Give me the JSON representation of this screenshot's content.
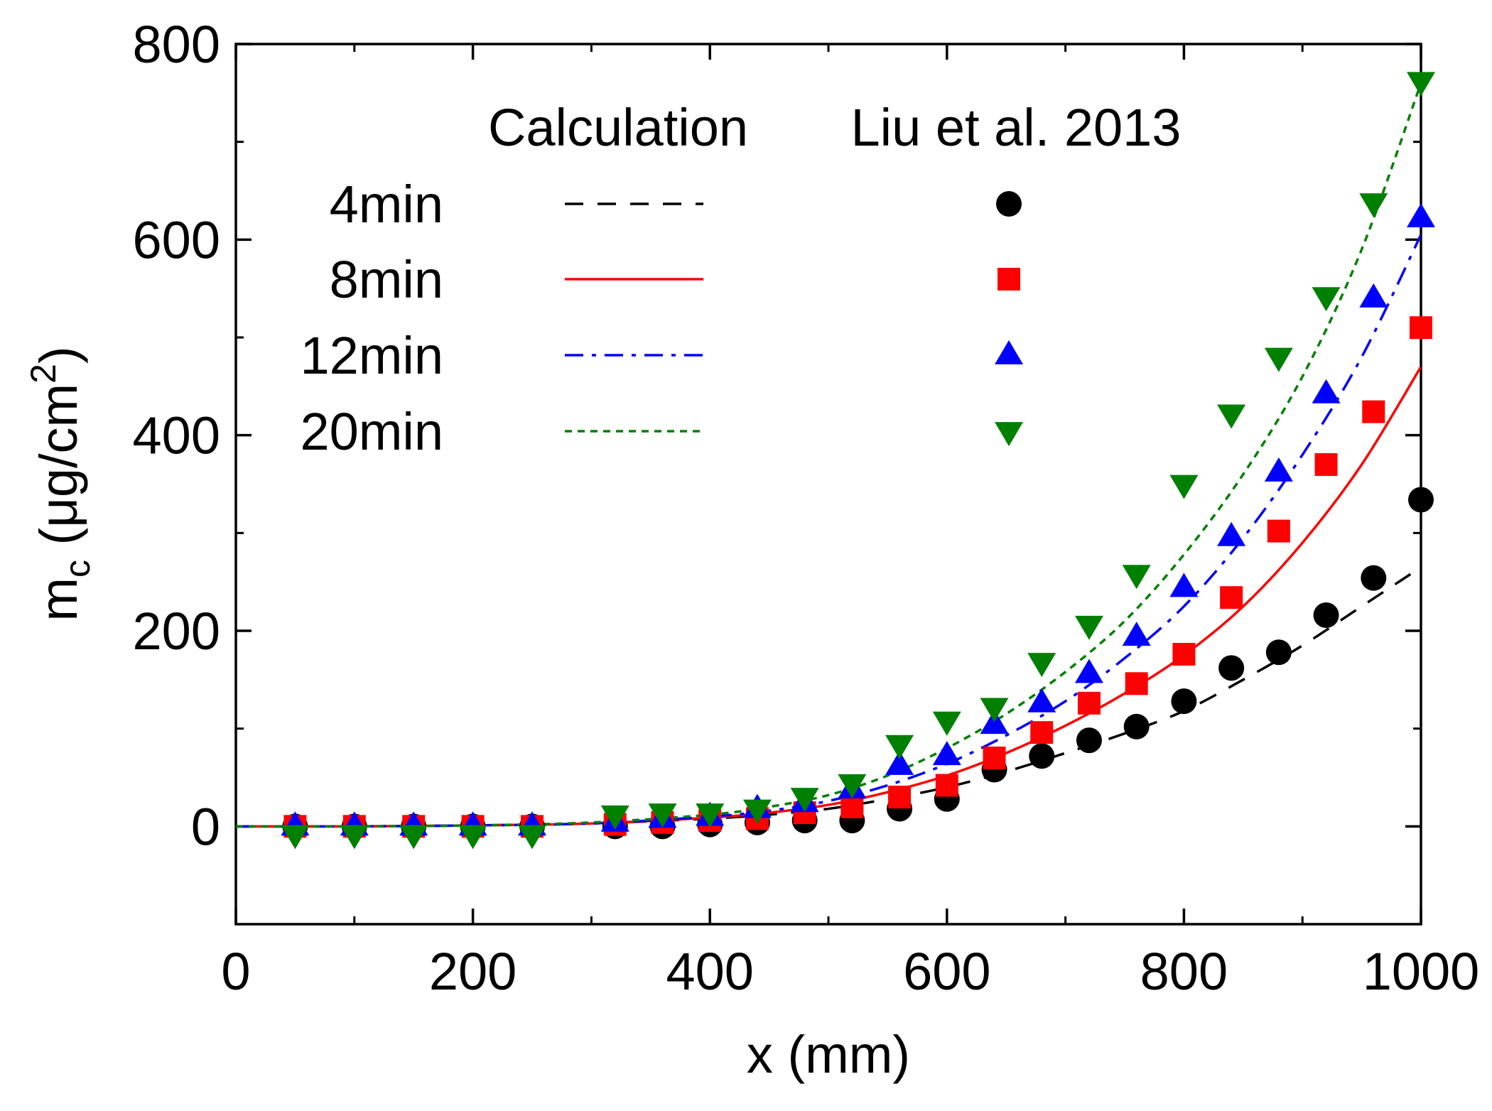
{
  "chart_data": {
    "type": "scatter",
    "title": "",
    "xlabel": "x (mm)",
    "ylabel_main": "m",
    "ylabel_sub": "c",
    "ylabel_rest": " (μg/cm",
    "ylabel_sup": "2",
    "ylabel_end": ")",
    "xlim": [
      0,
      1000
    ],
    "ylim": [
      -100,
      800
    ],
    "xticks": [
      0,
      200,
      400,
      600,
      800,
      1000
    ],
    "yticks": [
      0,
      200,
      400,
      600,
      800
    ],
    "grid": false,
    "legend": {
      "position": "top-left",
      "calc_header": "Calculation",
      "exp_header": "Liu et al. 2013"
    },
    "calculation": [
      {
        "name": "4min",
        "color": "#000000",
        "dash": "dashed",
        "x": [
          0,
          100,
          200,
          300,
          400,
          450,
          500,
          550,
          600,
          650,
          700,
          750,
          800,
          850,
          900,
          950,
          1000
        ],
        "y": [
          0,
          0,
          1,
          3,
          8,
          12,
          18,
          28,
          40,
          56,
          75,
          95,
          118,
          150,
          185,
          225,
          265
        ]
      },
      {
        "name": "8min",
        "color": "#ff0000",
        "dash": "solid",
        "x": [
          0,
          100,
          200,
          300,
          400,
          450,
          500,
          550,
          600,
          650,
          700,
          750,
          800,
          850,
          900,
          950,
          1000
        ],
        "y": [
          0,
          0,
          1,
          3,
          9,
          14,
          22,
          35,
          52,
          75,
          103,
          136,
          175,
          225,
          290,
          370,
          470
        ]
      },
      {
        "name": "12min",
        "color": "#0000ff",
        "dash": "dashdot",
        "x": [
          0,
          100,
          200,
          300,
          400,
          450,
          500,
          550,
          600,
          650,
          700,
          750,
          800,
          850,
          900,
          950,
          1000
        ],
        "y": [
          0,
          0,
          1,
          3,
          10,
          16,
          26,
          42,
          64,
          93,
          128,
          172,
          225,
          295,
          380,
          480,
          605
        ]
      },
      {
        "name": "20min",
        "color": "#008000",
        "dash": "dotted",
        "x": [
          0,
          100,
          200,
          300,
          400,
          450,
          500,
          550,
          600,
          650,
          700,
          750,
          800,
          850,
          900,
          950,
          1000
        ],
        "y": [
          0,
          0,
          1,
          4,
          12,
          20,
          32,
          52,
          80,
          115,
          158,
          210,
          278,
          360,
          460,
          590,
          760
        ]
      }
    ],
    "experiment": [
      {
        "name": "4min",
        "color": "#000000",
        "marker": "circle",
        "x": [
          50,
          100,
          150,
          200,
          250,
          320,
          360,
          400,
          440,
          480,
          520,
          560,
          600,
          640,
          680,
          720,
          760,
          800,
          840,
          880,
          920,
          960,
          1000
        ],
        "y": [
          0,
          0,
          0,
          0,
          0,
          0,
          0,
          2,
          4,
          6,
          6,
          18,
          28,
          58,
          72,
          88,
          102,
          128,
          162,
          178,
          216,
          254,
          334
        ]
      },
      {
        "name": "8min",
        "color": "#ff0000",
        "marker": "square",
        "x": [
          50,
          100,
          150,
          200,
          250,
          320,
          360,
          400,
          440,
          480,
          520,
          560,
          600,
          640,
          680,
          720,
          760,
          800,
          840,
          880,
          920,
          960,
          1000
        ],
        "y": [
          0,
          0,
          0,
          0,
          0,
          2,
          4,
          6,
          8,
          14,
          20,
          30,
          42,
          70,
          96,
          126,
          146,
          176,
          234,
          302,
          370,
          424,
          510
        ]
      },
      {
        "name": "12min",
        "color": "#0000ff",
        "marker": "triangle-up",
        "x": [
          50,
          100,
          150,
          200,
          250,
          320,
          360,
          400,
          440,
          480,
          520,
          560,
          600,
          640,
          680,
          720,
          760,
          800,
          840,
          880,
          920,
          960,
          1000
        ],
        "y": [
          0,
          0,
          0,
          0,
          0,
          4,
          8,
          10,
          18,
          24,
          38,
          62,
          72,
          104,
          126,
          156,
          194,
          244,
          296,
          362,
          442,
          540,
          622
        ]
      },
      {
        "name": "20min",
        "color": "#008000",
        "marker": "triangle-down",
        "x": [
          50,
          100,
          150,
          200,
          250,
          320,
          360,
          400,
          440,
          480,
          520,
          560,
          600,
          640,
          680,
          720,
          760,
          800,
          840,
          880,
          920,
          960,
          1000
        ],
        "y": [
          -8,
          -8,
          -8,
          -8,
          -8,
          12,
          14,
          14,
          18,
          30,
          44,
          84,
          108,
          122,
          168,
          206,
          258,
          350,
          422,
          480,
          542,
          638,
          762
        ]
      }
    ]
  }
}
